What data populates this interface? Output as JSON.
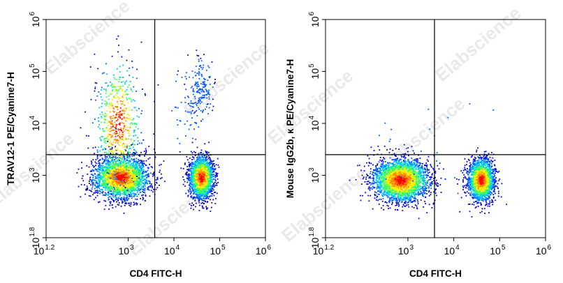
{
  "chart_data": [
    {
      "type": "scatter",
      "subtype": "flow-cytometry-density-dot-plot",
      "xlabel": "CD4 FITC-H",
      "ylabel": "TRAV12-1 PE/Cyanine7-H",
      "x_scale": "log",
      "y_scale": "log",
      "xlim": [
        16,
        1000000
      ],
      "ylim": [
        63,
        1000000
      ],
      "x_ticks": [
        {
          "base": "10",
          "exp": "1.2",
          "value": 16
        },
        {
          "base": "10",
          "exp": "3",
          "value": 1000
        },
        {
          "base": "10",
          "exp": "4",
          "value": 10000
        },
        {
          "base": "10",
          "exp": "5",
          "value": 100000
        },
        {
          "base": "10",
          "exp": "6",
          "value": 1000000
        }
      ],
      "y_ticks": [
        {
          "base": "10",
          "exp": "1.8",
          "value": 63
        },
        {
          "base": "10",
          "exp": "3",
          "value": 1000
        },
        {
          "base": "10",
          "exp": "4",
          "value": 10000
        },
        {
          "base": "10",
          "exp": "5",
          "value": 100000
        },
        {
          "base": "10",
          "exp": "6",
          "value": 1000000
        }
      ],
      "quadrant_gate": {
        "x": 3800,
        "y": 2500
      },
      "populations": [
        {
          "center_x": 700,
          "center_y": 900,
          "spread_x_decades": 0.3,
          "spread_y_decades": 0.2,
          "events": 2600
        },
        {
          "center_x": 40000,
          "center_y": 900,
          "spread_x_decades": 0.13,
          "spread_y_decades": 0.2,
          "events": 2000
        },
        {
          "center_x": 600,
          "center_y": 10000,
          "spread_x_decades": 0.25,
          "spread_y_decades": 0.6,
          "events": 650
        },
        {
          "center_x": 40000,
          "center_y": 50000,
          "spread_x_decades": 0.12,
          "spread_y_decades": 0.25,
          "events": 160
        },
        {
          "center_x": 20000,
          "center_y": 20000,
          "spread_x_decades": 0.2,
          "spread_y_decades": 0.35,
          "events": 60
        }
      ],
      "grid": false,
      "legend": "none"
    },
    {
      "type": "scatter",
      "subtype": "flow-cytometry-density-dot-plot",
      "xlabel": "CD4 FITC-H",
      "ylabel": "Mouse IgG2b, κ PE/Cyanine7-H",
      "x_scale": "log",
      "y_scale": "log",
      "xlim": [
        16,
        1000000
      ],
      "ylim": [
        63,
        1000000
      ],
      "x_ticks": [
        {
          "base": "10",
          "exp": "1.2",
          "value": 16
        },
        {
          "base": "10",
          "exp": "3",
          "value": 1000
        },
        {
          "base": "10",
          "exp": "4",
          "value": 10000
        },
        {
          "base": "10",
          "exp": "5",
          "value": 100000
        },
        {
          "base": "10",
          "exp": "6",
          "value": 1000000
        }
      ],
      "y_ticks": [
        {
          "base": "10",
          "exp": "1.8",
          "value": 63
        },
        {
          "base": "10",
          "exp": "3",
          "value": 1000
        },
        {
          "base": "10",
          "exp": "4",
          "value": 10000
        },
        {
          "base": "10",
          "exp": "5",
          "value": 100000
        },
        {
          "base": "10",
          "exp": "6",
          "value": 1000000
        }
      ],
      "quadrant_gate": {
        "x": 3800,
        "y": 2500
      },
      "populations": [
        {
          "center_x": 700,
          "center_y": 800,
          "spread_x_decades": 0.3,
          "spread_y_decades": 0.2,
          "events": 3000
        },
        {
          "center_x": 40000,
          "center_y": 800,
          "spread_x_decades": 0.14,
          "spread_y_decades": 0.2,
          "events": 2100
        },
        {
          "center_x": 3000,
          "center_y": 3000,
          "spread_x_decades": 0.8,
          "spread_y_decades": 0.6,
          "events": 30
        }
      ],
      "grid": false,
      "legend": "none"
    }
  ],
  "watermark": {
    "text": "Elabscience",
    "color": "#d8d8d8"
  },
  "density_colors": [
    "#0000cc",
    "#0055ff",
    "#00bfff",
    "#33ff66",
    "#ffee00",
    "#ff8800",
    "#ff0000"
  ]
}
